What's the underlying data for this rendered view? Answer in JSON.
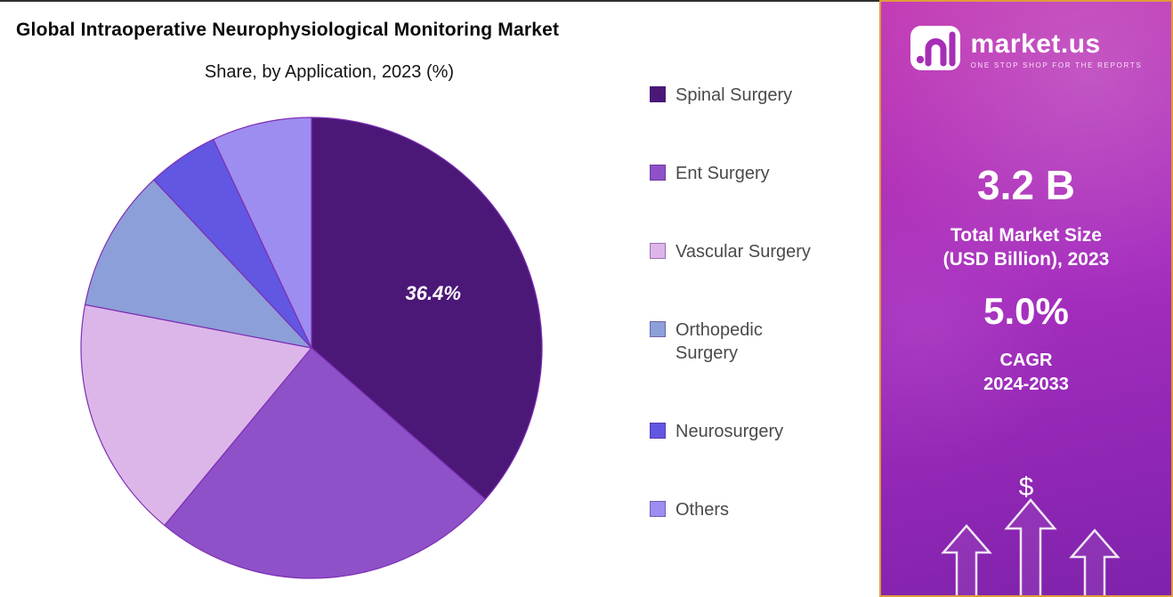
{
  "main": {
    "title": "Global Intraoperative Neurophysiological Monitoring Market",
    "subtitle": "Share, by Application, 2023 (%)"
  },
  "chart_data": {
    "type": "pie",
    "title": "Global Intraoperative Neurophysiological Monitoring Market",
    "subtitle": "Share, by Application, 2023 (%)",
    "labels": [
      "Spinal Surgery",
      "Ent Surgery",
      "Vascular Surgery",
      "Orthopedic Surgery",
      "Neurosurgery",
      "Others"
    ],
    "values": [
      36.4,
      24.6,
      17.0,
      10.0,
      5.0,
      7.0
    ],
    "colors": [
      "#4B1878",
      "#8E51C8",
      "#DCB6E9",
      "#8C9FD9",
      "#6157E2",
      "#9D8DF0"
    ],
    "start_angle_deg": 0,
    "direction": "clockwise",
    "legend_position": "right",
    "data_label": {
      "slice": "Spinal Surgery",
      "text": "36.4%"
    }
  },
  "sidebar": {
    "brand": {
      "name": "market.us",
      "tagline": "ONE STOP SHOP FOR THE REPORTS"
    },
    "market_size_value": "3.2 B",
    "market_size_label_line1": "Total Market Size",
    "market_size_label_line2": "(USD Billion), 2023",
    "cagr_value": "5.0%",
    "cagr_label_line1": "CAGR",
    "cagr_label_line2": "2024-2033",
    "dollar_symbol": "$",
    "colors": {
      "border": "#E09B3D",
      "gradient_top": "#C23AB4",
      "gradient_mid": "#A62DBE",
      "gradient_bottom": "#7E22AC"
    }
  }
}
